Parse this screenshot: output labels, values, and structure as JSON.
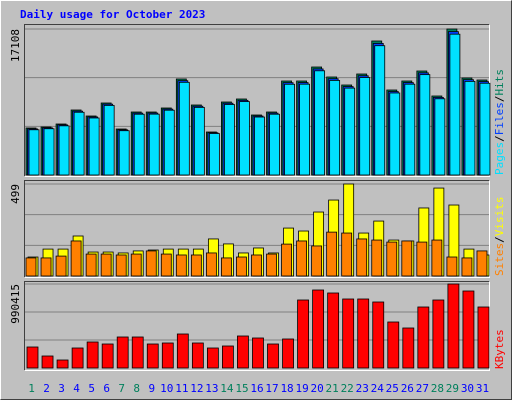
{
  "separator": "/",
  "chart_data": [
    {
      "type": "bar",
      "title": "Daily usage for October 2023",
      "ylim": [
        0,
        17108
      ],
      "yticks": [
        17108
      ],
      "series": [
        {
          "name": "Hits",
          "color": "#00805c",
          "values": [
            5508,
            5625,
            5976,
            7617,
            6914,
            8437,
            5390,
            7382,
            7382,
            7851,
            11249,
            8203,
            5039,
            8554,
            8906,
            7031,
            7382,
            11015,
            11015,
            12655,
            11484,
            10546,
            11835,
            15702,
            9960,
            11015,
            12187,
            9257,
            17108,
            11367,
            11132
          ]
        },
        {
          "name": "Files",
          "color": "#0040ff",
          "values": [
            5400,
            5520,
            5870,
            7480,
            6800,
            8300,
            5290,
            7250,
            7260,
            7720,
            11050,
            8060,
            4950,
            8410,
            8750,
            6910,
            7250,
            10820,
            10830,
            12430,
            11280,
            10360,
            11630,
            15420,
            9780,
            10830,
            11970,
            9090,
            16800,
            11170,
            10940
          ]
        },
        {
          "name": "Pages",
          "color": "#00e0ff",
          "values": [
            5300,
            5420,
            5760,
            7350,
            6680,
            8150,
            5190,
            7120,
            7130,
            7590,
            10860,
            7920,
            4860,
            8260,
            8600,
            6790,
            7120,
            10630,
            10640,
            12210,
            11080,
            10180,
            11420,
            15150,
            9610,
            10640,
            11760,
            8930,
            16500,
            10970,
            10750
          ]
        }
      ]
    },
    {
      "type": "bar",
      "ylim": [
        0,
        499
      ],
      "yticks": [
        499
      ],
      "series": [
        {
          "name": "Visits",
          "color": "#ffff00",
          "values": [
            103,
            146,
            146,
            217,
            130,
            130,
            125,
            136,
            141,
            146,
            146,
            146,
            201,
            174,
            125,
            152,
            125,
            260,
            244,
            347,
            412,
            499,
            233,
            298,
            195,
            190,
            369,
            477,
            385,
            146,
            114
          ]
        },
        {
          "name": "Sites",
          "color": "#ff8000",
          "values": [
            98,
            98,
            108,
            190,
            119,
            119,
            114,
            119,
            136,
            119,
            114,
            114,
            125,
            98,
            103,
            114,
            119,
            173,
            190,
            163,
            238,
            233,
            201,
            195,
            184,
            190,
            184,
            195,
            103,
            98,
            136
          ]
        }
      ]
    },
    {
      "type": "bar",
      "ylim": [
        0,
        990415
      ],
      "yticks": [
        990415
      ],
      "categories": [
        "1",
        "2",
        "3",
        "4",
        "5",
        "6",
        "7",
        "8",
        "9",
        "10",
        "11",
        "12",
        "13",
        "14",
        "15",
        "16",
        "17",
        "18",
        "19",
        "20",
        "21",
        "22",
        "23",
        "24",
        "25",
        "26",
        "27",
        "28",
        "29",
        "30",
        "31"
      ],
      "category_colors": [
        "#00805c",
        "#0000ff",
        "#0000ff",
        "#0000ff",
        "#0000ff",
        "#0000ff",
        "#00805c",
        "#00805c",
        "#0000ff",
        "#0000ff",
        "#0000ff",
        "#0000ff",
        "#0000ff",
        "#00805c",
        "#00805c",
        "#0000ff",
        "#0000ff",
        "#0000ff",
        "#0000ff",
        "#0000ff",
        "#00805c",
        "#00805c",
        "#0000ff",
        "#0000ff",
        "#0000ff",
        "#0000ff",
        "#0000ff",
        "#00805c",
        "#00805c",
        "#0000ff",
        "#0000ff"
      ],
      "series": [
        {
          "name": "KBytes",
          "color": "#ff0000",
          "values": [
            247611,
            141492,
            94328,
            235820,
            306566,
            282984,
            365521,
            365521,
            282984,
            294775,
            400894,
            294775,
            235820,
            259402,
            377312,
            353730,
            282984,
            341939,
            801788,
            919698,
            884325,
            813579,
            813579,
            778206,
            542386,
            471640,
            719251,
            801788,
            990415,
            907907,
            719251
          ]
        }
      ]
    }
  ]
}
